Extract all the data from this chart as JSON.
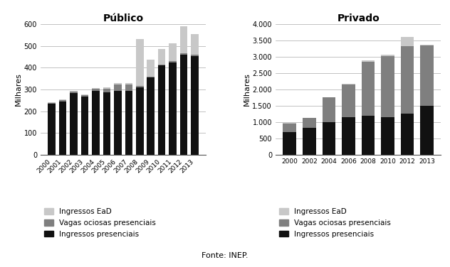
{
  "publico": {
    "title": "Público",
    "ylabel": "Milhares",
    "years": [
      2000,
      2001,
      2002,
      2003,
      2004,
      2005,
      2006,
      2007,
      2008,
      2009,
      2010,
      2011,
      2012,
      2013
    ],
    "ingressos_presenciais": [
      234,
      245,
      283,
      268,
      293,
      288,
      293,
      293,
      310,
      355,
      410,
      425,
      460,
      454
    ],
    "vagas_ociosas": [
      5,
      5,
      7,
      7,
      10,
      15,
      30,
      30,
      5,
      5,
      5,
      5,
      5,
      5
    ],
    "ingressos_ead": [
      3,
      3,
      3,
      3,
      3,
      8,
      5,
      5,
      215,
      78,
      70,
      82,
      125,
      95
    ],
    "ylim": [
      0,
      600
    ],
    "yticks": [
      0,
      100,
      200,
      300,
      400,
      500,
      600
    ]
  },
  "privado": {
    "title": "Privado",
    "ylabel": "Milhares",
    "years": [
      2000,
      2002,
      2004,
      2006,
      2008,
      2010,
      2012,
      2013
    ],
    "ingressos_presenciais": [
      700,
      820,
      1000,
      1150,
      1200,
      1150,
      1260,
      1500
    ],
    "vagas_ociosas": [
      250,
      300,
      750,
      1000,
      1650,
      1870,
      2070,
      1850
    ],
    "ingressos_ead": [
      30,
      10,
      10,
      20,
      50,
      50,
      270,
      20
    ],
    "ylim": [
      0,
      4000
    ],
    "yticks": [
      0,
      500,
      1000,
      1500,
      2000,
      2500,
      3000,
      3500,
      4000
    ]
  },
  "colors": {
    "ingressos_presenciais": "#111111",
    "vagas_ociosas": "#7f7f7f",
    "ingressos_ead": "#c8c8c8"
  },
  "legend_labels": [
    "Ingressos EaD",
    "Vagas ociosas presenciais",
    "Ingressos presenciais"
  ],
  "fonte": "Fonte: INEP."
}
